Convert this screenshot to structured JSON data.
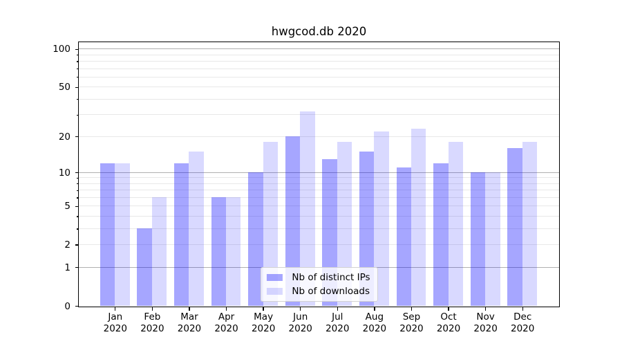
{
  "title": "hwgcod.db 2020",
  "chart_data": {
    "type": "bar",
    "title": "hwgcod.db 2020",
    "categories": [
      {
        "month": "Jan",
        "year": "2020"
      },
      {
        "month": "Feb",
        "year": "2020"
      },
      {
        "month": "Mar",
        "year": "2020"
      },
      {
        "month": "Apr",
        "year": "2020"
      },
      {
        "month": "May",
        "year": "2020"
      },
      {
        "month": "Jun",
        "year": "2020"
      },
      {
        "month": "Jul",
        "year": "2020"
      },
      {
        "month": "Aug",
        "year": "2020"
      },
      {
        "month": "Sep",
        "year": "2020"
      },
      {
        "month": "Oct",
        "year": "2020"
      },
      {
        "month": "Nov",
        "year": "2020"
      },
      {
        "month": "Dec",
        "year": "2020"
      }
    ],
    "series": [
      {
        "name": "Nb of distinct IPs",
        "color": "rgba(0,0,255,0.35)",
        "values": [
          12,
          3,
          12,
          6,
          10,
          20,
          13,
          15,
          11,
          12,
          10,
          16
        ]
      },
      {
        "name": "Nb of downloads",
        "color": "rgba(0,0,255,0.15)",
        "values": [
          12,
          6,
          15,
          6,
          18,
          32,
          18,
          22,
          23,
          18,
          10,
          18
        ]
      }
    ],
    "yscale": "log1p",
    "ylim": [
      0,
      113
    ],
    "ytick_labels": [
      100,
      50,
      20,
      10,
      5,
      2,
      1,
      0
    ],
    "major_grid_values": [
      1,
      10,
      100
    ],
    "minor_grid_values": [
      2,
      3,
      4,
      5,
      6,
      7,
      8,
      9,
      20,
      30,
      40,
      50,
      60,
      70,
      80,
      90
    ],
    "grid": true,
    "legend_position": "lower center",
    "colors": {
      "bar_distinct_ips": "rgba(0,0,255,0.35)",
      "bar_downloads": "rgba(0,0,255,0.15)",
      "major_grid": "#b0b0b0",
      "minor_grid": "#e8e8e8",
      "spine": "#000000",
      "text": "#000000",
      "legend_border": "#d2d2d2"
    }
  }
}
